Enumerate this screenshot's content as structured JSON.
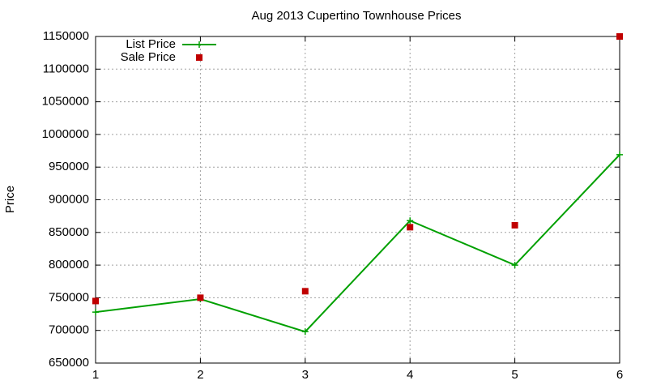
{
  "chart_data": {
    "type": "line",
    "title": "Aug 2013 Cupertino Townhouse Prices",
    "y_label": "Price",
    "x": [
      1,
      2,
      3,
      4,
      5,
      6
    ],
    "series": [
      {
        "name": "List Price",
        "color": "#00a000",
        "style": "linespoints",
        "values": [
          728000,
          748000,
          698000,
          868000,
          800000,
          969000
        ]
      },
      {
        "name": "Sale Price",
        "color": "#c00000",
        "style": "points",
        "values": [
          745000,
          750000,
          760000,
          858000,
          861000,
          1150000
        ]
      }
    ],
    "xlim": [
      1,
      6
    ],
    "xticks": [
      1,
      2,
      3,
      4,
      5,
      6
    ],
    "ylim": [
      650000,
      1150000
    ],
    "yticks": [
      650000,
      700000,
      750000,
      800000,
      850000,
      900000,
      950000,
      1000000,
      1050000,
      1100000,
      1150000
    ],
    "grid": true,
    "legend": "top-left"
  }
}
